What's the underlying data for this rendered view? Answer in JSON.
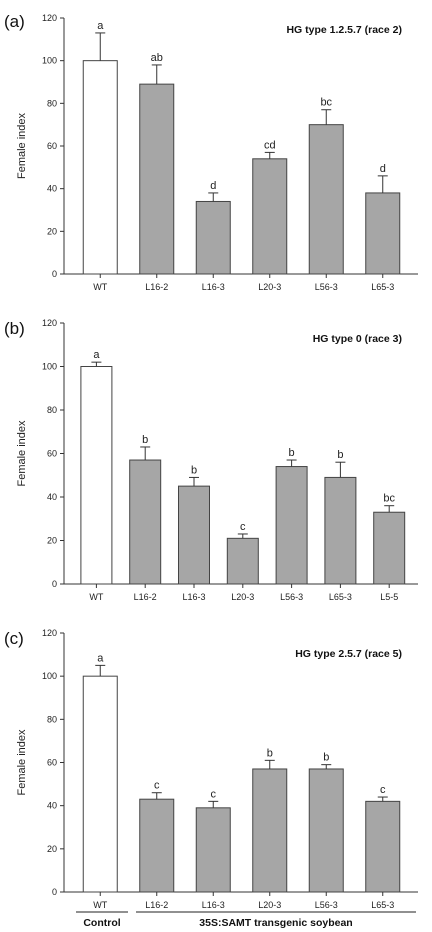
{
  "chart_data": [
    {
      "type": "bar",
      "panel_label": "(a)",
      "title": "HG type 1.2.5.7 (race 2)",
      "ylabel": "Female index",
      "ylim": [
        0,
        120
      ],
      "yticks": [
        "0",
        "20",
        "40",
        "60",
        "80",
        "100",
        "120"
      ],
      "categories": [
        "WT",
        "L16-2",
        "L16-3",
        "L20-3",
        "L56-3",
        "L65-3"
      ],
      "values": [
        100,
        89,
        34,
        54,
        70,
        38
      ],
      "errors": [
        13,
        9,
        4,
        3,
        7,
        8
      ],
      "significance": [
        "a",
        "ab",
        "d",
        "cd",
        "bc",
        "d"
      ],
      "colors": [
        "#ffffff",
        "#a6a6a6",
        "#a6a6a6",
        "#a6a6a6",
        "#a6a6a6",
        "#a6a6a6"
      ]
    },
    {
      "type": "bar",
      "panel_label": "(b)",
      "title": "HG type 0 (race 3)",
      "ylabel": "Female index",
      "ylim": [
        0,
        120
      ],
      "yticks": [
        "0",
        "20",
        "40",
        "60",
        "80",
        "100",
        "120"
      ],
      "categories": [
        "WT",
        "L16-2",
        "L16-3",
        "L20-3",
        "L56-3",
        "L65-3",
        "L5-5"
      ],
      "values": [
        100,
        57,
        45,
        21,
        54,
        49,
        33
      ],
      "errors": [
        2,
        6,
        4,
        2,
        3,
        7,
        3
      ],
      "significance": [
        "a",
        "b",
        "b",
        "c",
        "b",
        "b",
        "bc"
      ],
      "colors": [
        "#ffffff",
        "#a6a6a6",
        "#a6a6a6",
        "#a6a6a6",
        "#a6a6a6",
        "#a6a6a6",
        "#a6a6a6"
      ]
    },
    {
      "type": "bar",
      "panel_label": "(c)",
      "title": "HG type 2.5.7 (race 5)",
      "ylabel": "Female index",
      "ylim": [
        0,
        120
      ],
      "yticks": [
        "0",
        "20",
        "40",
        "60",
        "80",
        "100",
        "120"
      ],
      "categories": [
        "WT",
        "L16-2",
        "L16-3",
        "L20-3",
        "L56-3",
        "L65-3"
      ],
      "values": [
        100,
        43,
        39,
        57,
        57,
        42
      ],
      "errors": [
        5,
        3,
        3,
        4,
        2,
        2
      ],
      "significance": [
        "a",
        "c",
        "c",
        "b",
        "b",
        "c"
      ],
      "colors": [
        "#ffffff",
        "#a6a6a6",
        "#a6a6a6",
        "#a6a6a6",
        "#a6a6a6",
        "#a6a6a6"
      ]
    }
  ],
  "groups": {
    "control": "Control",
    "transgenic": "35S:SAMT transgenic soybean"
  }
}
